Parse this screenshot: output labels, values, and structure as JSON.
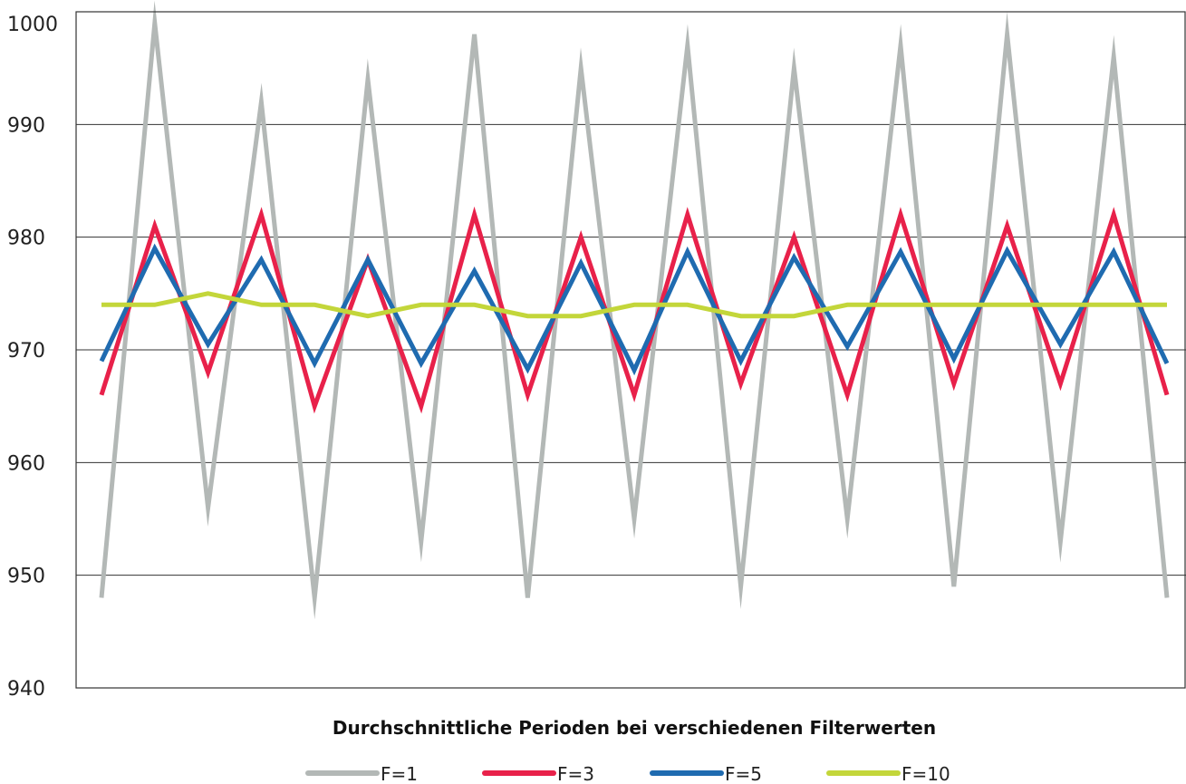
{
  "chart_data": {
    "type": "line",
    "title": "",
    "xlabel": "Durchschnittliche Perioden bei verschiedenen Filterwerten",
    "ylabel": "",
    "ylim": [
      940,
      1000
    ],
    "yticks": [
      "940",
      "950",
      "960",
      "970",
      "980",
      "990",
      "1000"
    ],
    "x": [
      1,
      2,
      3,
      4,
      5,
      6,
      7,
      8,
      9,
      10,
      11,
      12,
      13,
      14,
      15,
      16,
      17,
      18,
      19,
      20,
      21
    ],
    "grid": "horizontal",
    "legend_position": "bottom",
    "series": [
      {
        "name": "F=1",
        "color": "#b3b8b6",
        "values": [
          948,
          999,
          956,
          992,
          948,
          994,
          953,
          998,
          948,
          995,
          955,
          997,
          949,
          995,
          955,
          997,
          949,
          998,
          953,
          996,
          948
        ]
      },
      {
        "name": "F=3",
        "color": "#e8214a",
        "values": [
          966,
          981,
          968,
          982,
          965,
          978,
          965,
          982,
          966,
          980,
          966,
          982,
          967,
          980,
          966,
          982,
          967,
          981,
          967,
          982,
          966
        ]
      },
      {
        "name": "F=5",
        "color": "#1f6bb0",
        "values": [
          969,
          979,
          970.5,
          978,
          968.8,
          978,
          968.8,
          977,
          968.3,
          977.7,
          968.2,
          978.7,
          969,
          978.2,
          970.3,
          978.7,
          969.2,
          978.8,
          970.5,
          978.7,
          968.8
        ]
      },
      {
        "name": "F=10",
        "color": "#c3d63a",
        "values": [
          974,
          974,
          975,
          974,
          974,
          973,
          974,
          974,
          973,
          973,
          974,
          974,
          973,
          973,
          974,
          974,
          974,
          974,
          974,
          974,
          974
        ]
      }
    ]
  }
}
